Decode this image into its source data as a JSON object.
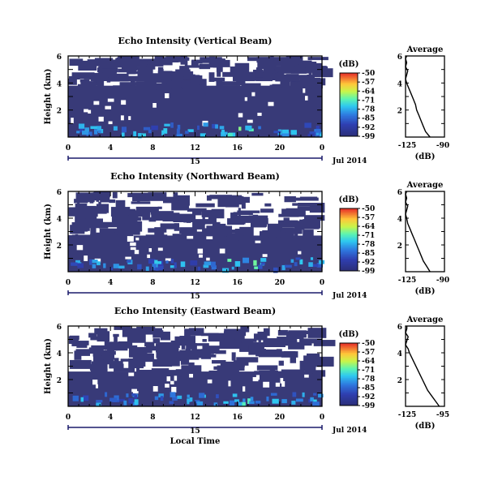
{
  "chart_data": [
    {
      "type": "heatmap",
      "title": "Echo Intensity (Vertical Beam)",
      "ylabel": "Height (km)",
      "ytick_labels": [
        "2",
        "4",
        "6"
      ],
      "xtick_labels": [
        "0",
        "4",
        "8",
        "12",
        "16",
        "20",
        "0"
      ],
      "date_label": "15",
      "month_label": "Jul 2014",
      "xlim": [
        0,
        24
      ],
      "ylim": [
        0,
        6
      ],
      "missing_data_color": "#ffffff",
      "band_top_km": 3.8,
      "colorbar": {
        "label": "(dB)",
        "ticks": [
          "-50",
          "-57",
          "-64",
          "-71",
          "-78",
          "-85",
          "-92",
          "-99"
        ],
        "range": [
          -99,
          -50
        ]
      },
      "profile": {
        "title": "Average",
        "xlabel": "(dB)",
        "xtick_labels": [
          "-125",
          "-90"
        ],
        "ytick_labels": [
          "2",
          "4",
          "6"
        ],
        "xlim": [
          -125,
          -90
        ],
        "height_km": [
          0.0,
          0.4,
          0.8,
          1.2,
          1.6,
          2.0,
          2.4,
          2.8,
          3.2,
          3.6,
          3.8,
          4.0,
          4.3,
          4.6,
          4.9,
          5.2,
          5.5,
          5.8,
          6.0
        ],
        "db": [
          -103,
          -107,
          -109,
          -111,
          -113,
          -115,
          -116,
          -118,
          -120,
          -122,
          -123,
          -124,
          -125,
          -124,
          -123,
          -125,
          -124,
          -125,
          -124
        ]
      }
    },
    {
      "type": "heatmap",
      "title": "Echo Intensity (Northward Beam)",
      "ylabel": "Height (km)",
      "ytick_labels": [
        "2",
        "4",
        "6"
      ],
      "xtick_labels": [
        "0",
        "4",
        "8",
        "12",
        "16",
        "20",
        "0"
      ],
      "date_label": "15",
      "month_label": "Jul 2014",
      "xlim": [
        0,
        24
      ],
      "ylim": [
        0,
        6
      ],
      "missing_data_color": "#ffffff",
      "band_top_km": 2.7,
      "colorbar": {
        "label": "(dB)",
        "ticks": [
          "-50",
          "-57",
          "-64",
          "-71",
          "-78",
          "-85",
          "-92",
          "-99"
        ],
        "range": [
          -99,
          -50
        ]
      },
      "profile": {
        "title": "Average",
        "xlabel": "(dB)",
        "xtick_labels": [
          "-125",
          "-90"
        ],
        "ytick_labels": [
          "2",
          "4",
          "6"
        ],
        "xlim": [
          -125,
          -90
        ],
        "height_km": [
          0.0,
          0.4,
          0.8,
          1.2,
          1.6,
          2.0,
          2.4,
          2.8,
          3.2,
          3.6,
          4.0,
          4.3,
          4.6,
          4.9,
          5.2,
          5.5,
          5.8,
          6.0
        ],
        "db": [
          -103,
          -106,
          -109,
          -111,
          -113,
          -115,
          -117,
          -119,
          -121,
          -123,
          -124,
          -125,
          -124,
          -123,
          -125,
          -124,
          -125,
          -124
        ]
      }
    },
    {
      "type": "heatmap",
      "title": "Echo Intensity (Eastward Beam)",
      "ylabel": "Height (km)",
      "ytick_labels": [
        "2",
        "4",
        "6"
      ],
      "xtick_labels": [
        "0",
        "4",
        "8",
        "12",
        "16",
        "20",
        "0"
      ],
      "date_label": "15",
      "month_label": "Jul 2014",
      "xlabel": "Local Time",
      "xlim": [
        0,
        24
      ],
      "ylim": [
        0,
        6
      ],
      "missing_data_color": "#ffffff",
      "band_top_km": 2.6,
      "colorbar": {
        "label": "(dB)",
        "ticks": [
          "-50",
          "-57",
          "-64",
          "-71",
          "-78",
          "-85",
          "-92",
          "-99"
        ],
        "range": [
          -99,
          -50
        ]
      },
      "profile": {
        "title": "Average",
        "xlabel": "(dB)",
        "xtick_labels": [
          "-125",
          "-95"
        ],
        "ytick_labels": [
          "2",
          "4",
          "6"
        ],
        "xlim": [
          -125,
          -95
        ],
        "height_km": [
          0.0,
          0.4,
          0.8,
          1.2,
          1.6,
          2.0,
          2.4,
          2.8,
          3.2,
          3.6,
          4.0,
          4.3,
          4.6,
          4.9,
          5.2,
          5.5,
          5.8,
          6.0
        ],
        "db": [
          -99,
          -102,
          -105,
          -108,
          -110,
          -112,
          -114,
          -116,
          -118,
          -120,
          -122,
          -123,
          -125,
          -124,
          -123,
          -125,
          -124,
          -124
        ]
      }
    }
  ]
}
